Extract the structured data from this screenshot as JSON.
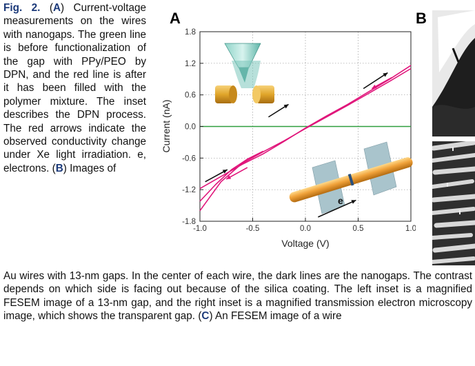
{
  "caption": {
    "fig_label": "Fig. 2.",
    "panel_a": "A",
    "part1": " Current-voltage measurements on the wires with nanogaps. The green line is before functionalization of the gap with PPy/PEO by DPN, and the red line is after it has been filled with the polymer mixture. The inset describes the DPN process. The red arrows indicate the observed conductivity change under Xe light irradiation. e, electrons. ",
    "panel_b": "B",
    "part2": " Images of",
    "part3": "Au wires with 13-nm gaps. In the center of each wire, the dark lines are the nanogaps. The contrast depends on which side is facing out because of the silica coating. The left inset is a magnified FESEM image of a 13-nm gap, and the right inset is a magnified transmission electron microscopy image, which shows the transparent gap. ",
    "panel_c": "C",
    "part4": " An FESEM image of a wire"
  },
  "panel_labels": {
    "a": "A",
    "b": "B"
  },
  "chart_data": {
    "type": "line",
    "xlabel": "Voltage (V)",
    "ylabel": "Current (nA)",
    "xlim": [
      -1.0,
      1.0
    ],
    "ylim": [
      -1.8,
      1.8
    ],
    "x_ticks": [
      "-1.0",
      "-0.5",
      "0.0",
      "0.5",
      "1.0"
    ],
    "y_ticks": [
      "1.8",
      "1.2",
      "0.6",
      "0.0",
      "-0.6",
      "-1.2",
      "-1.8"
    ],
    "grid": "dotted",
    "inset_label": "e",
    "series": [
      {
        "color": "#2f9e3f",
        "x": [
          -1.0,
          1.0
        ],
        "y": [
          0.0,
          0.0
        ]
      },
      {
        "color": "#e0147a",
        "x": [
          -1.0,
          -0.8,
          -0.6,
          -0.4,
          -0.2,
          0.0,
          0.2,
          0.4,
          0.6,
          0.8,
          1.0
        ],
        "y": [
          -1.18,
          -0.95,
          -0.72,
          -0.52,
          -0.28,
          -0.03,
          0.2,
          0.42,
          0.66,
          0.9,
          1.16
        ]
      },
      {
        "color": "#e0147a",
        "x": [
          -1.0,
          -0.8,
          -0.6,
          -0.4,
          -0.2,
          0.0,
          0.2,
          0.4,
          0.6,
          0.8,
          1.0
        ],
        "y": [
          -1.6,
          -1.05,
          -0.7,
          -0.48,
          -0.27,
          -0.04,
          0.18,
          0.4,
          0.63,
          0.86,
          1.1
        ]
      },
      {
        "color": "#e0147a",
        "x": [
          -1.0,
          -0.85,
          -0.7,
          -0.55,
          -0.4
        ],
        "y": [
          -1.42,
          -1.1,
          -0.82,
          -0.62,
          -0.47
        ]
      }
    ]
  }
}
